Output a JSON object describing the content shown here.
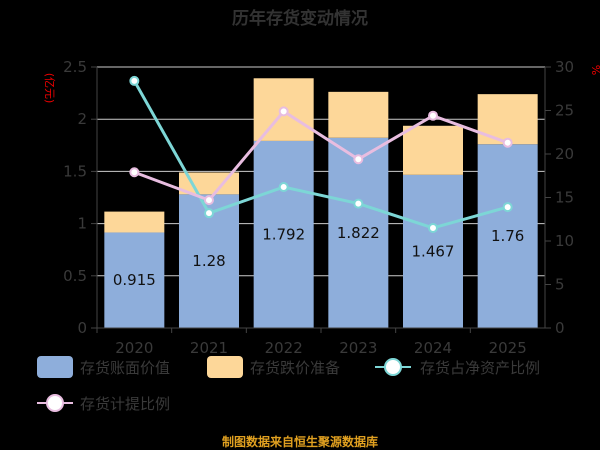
{
  "chart_data": {
    "type": "bar",
    "title": "历年存货变动情况",
    "categories": [
      "2020",
      "2021",
      "2022",
      "2023",
      "2024",
      "2025"
    ],
    "y_left": {
      "label": "(亿元)",
      "range": [
        0,
        2.5
      ],
      "ticks": [
        "0",
        "0.5",
        "1",
        "1.5",
        "2",
        "2.5"
      ]
    },
    "y_right": {
      "label": "%",
      "range": [
        0,
        30
      ],
      "ticks": [
        "0",
        "5",
        "10",
        "15",
        "20",
        "25",
        "30"
      ]
    },
    "grid": true,
    "legend_position": "bottom",
    "series": [
      {
        "name": "存货账面价值",
        "type": "bar",
        "stack": true,
        "axis": "left",
        "color": "#8eaedb",
        "values": [
          0.915,
          1.28,
          1.792,
          1.822,
          1.467,
          1.76
        ],
        "labels": [
          "0.915",
          "1.28",
          "1.792",
          "1.822",
          "1.467",
          "1.76"
        ]
      },
      {
        "name": "存货跌价准备",
        "type": "bar",
        "stack": true,
        "axis": "left",
        "color": "#fdd799",
        "values": [
          0.2,
          0.21,
          0.6,
          0.44,
          0.47,
          0.48
        ]
      },
      {
        "name": "存货占净资产比例",
        "type": "line",
        "axis": "right",
        "color": "#7dd6d6",
        "values": [
          28.4,
          13.2,
          16.2,
          14.3,
          11.5,
          13.9
        ]
      },
      {
        "name": "存货计提比例",
        "type": "line",
        "axis": "right",
        "color": "#e8bde0",
        "values": [
          17.9,
          14.7,
          24.9,
          19.4,
          24.4,
          21.3
        ]
      }
    ],
    "footer": "制图数据来自恒生聚源数据库"
  }
}
